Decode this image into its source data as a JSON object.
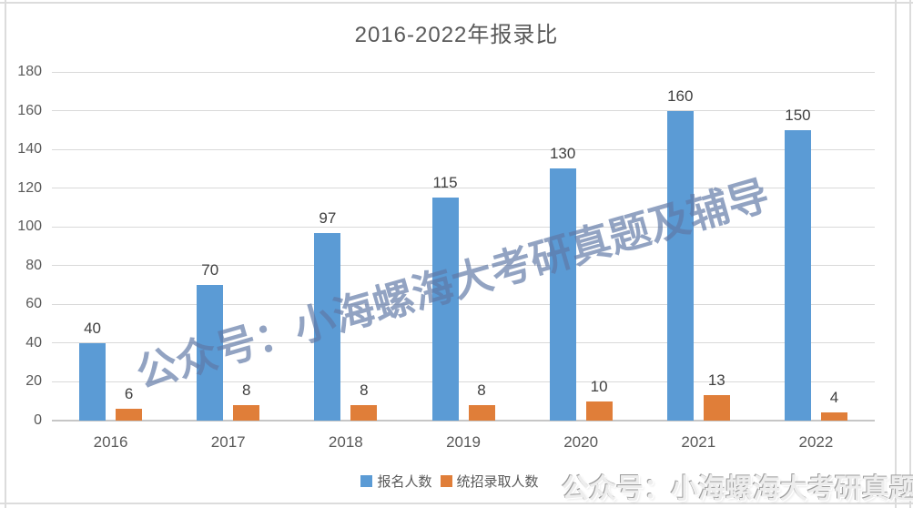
{
  "title": "2016-2022年报录比",
  "colors": {
    "series_blue": "#5B9BD5",
    "series_orange": "#E07E39",
    "gridline": "#D9D9D9",
    "axis_text": "#595959",
    "data_label_text": "#404040",
    "diagonal_watermark": "#8FA1C0",
    "frame_border": "#DCDCDC"
  },
  "watermarks": {
    "diagonal": "公众号：小海螺海大考研真题及辅导",
    "bottom_right": "公众号：小海螺海大考研真题"
  },
  "chart_data": {
    "type": "bar",
    "title": "2016-2022年报录比",
    "categories": [
      "2016",
      "2017",
      "2018",
      "2019",
      "2020",
      "2021",
      "2022"
    ],
    "series": [
      {
        "name": "报名人数",
        "color": "#5B9BD5",
        "values": [
          40,
          70,
          97,
          115,
          130,
          160,
          150
        ]
      },
      {
        "name": "统招录取人数",
        "color": "#E07E39",
        "values": [
          6,
          8,
          8,
          8,
          10,
          13,
          4
        ]
      }
    ],
    "ylim": [
      0,
      180
    ],
    "ytick_step": 20,
    "yticks": [
      0,
      20,
      40,
      60,
      80,
      100,
      120,
      140,
      160,
      180
    ],
    "grid": true,
    "data_labels": true,
    "legend_position": "bottom"
  }
}
